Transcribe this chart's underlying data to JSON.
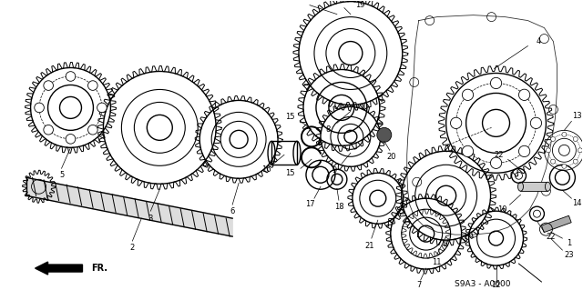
{
  "bg_color": "#ffffff",
  "fig_width": 6.4,
  "fig_height": 3.19,
  "dpi": 100,
  "code": "S9A3 - A0600"
}
